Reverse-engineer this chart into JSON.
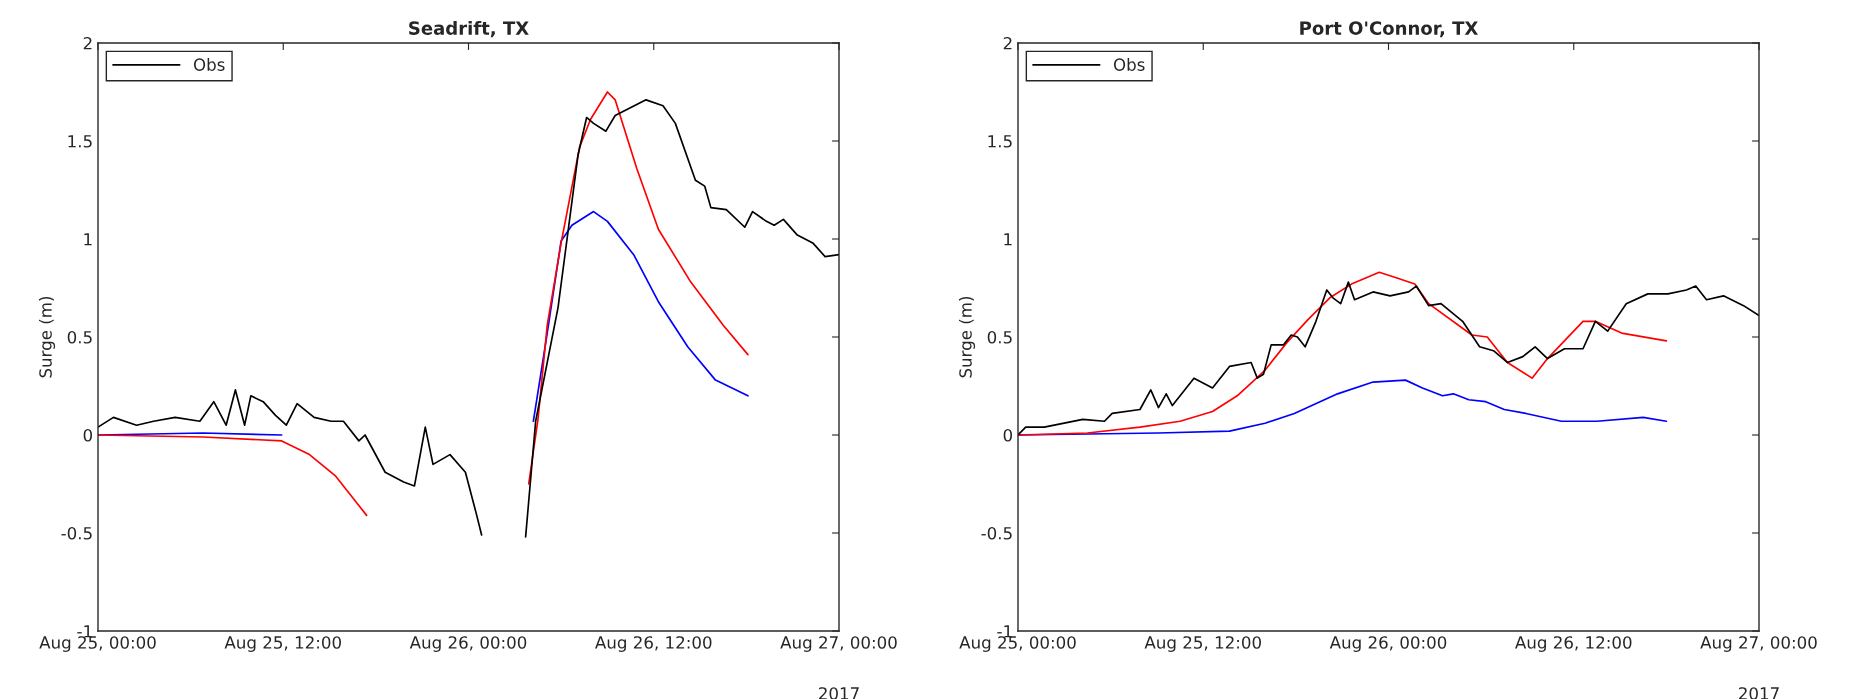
{
  "chart_data": [
    {
      "type": "line",
      "title": "Seadrift, TX",
      "ylabel": "Surge (m)",
      "annotations": [
        "2017"
      ],
      "xlim": [
        "2017-08-25T00:00",
        "2017-08-27T00:00"
      ],
      "xticks": [
        {
          "value": "2017-08-25T00:00",
          "label": "Aug 25, 00:00"
        },
        {
          "value": "2017-08-25T12:00",
          "label": "Aug 25, 12:00"
        },
        {
          "value": "2017-08-26T00:00",
          "label": "Aug 26, 00:00"
        },
        {
          "value": "2017-08-26T12:00",
          "label": "Aug 26, 12:00"
        },
        {
          "value": "2017-08-27T00:00",
          "label": "Aug 27, 00:00"
        }
      ],
      "ylim": [
        -1,
        2
      ],
      "yticks": [
        -1,
        -0.5,
        0,
        0.5,
        1,
        1.5,
        2
      ],
      "grid": false,
      "legend": "top left",
      "line_style": "solid",
      "marker": "none",
      "series": [
        {
          "color": "#0000ff",
          "x": [
            "2017-08-25T00:00",
            "2017-08-25T06:48",
            "2017-08-25T11:54",
            "2017-08-26T00:00",
            "2017-08-26T04:12",
            "2017-08-26T05:06",
            "2017-08-26T06:00",
            "2017-08-26T06:42",
            "2017-08-26T08:06",
            "2017-08-26T09:00",
            "2017-08-26T10:42",
            "2017-08-26T12:18",
            "2017-08-26T14:12",
            "2017-08-26T16:00",
            "2017-08-26T18:06"
          ],
          "values": [
            0.0,
            0.01,
            0.0,
            null,
            0.07,
            0.52,
            0.99,
            1.07,
            1.14,
            1.09,
            0.92,
            0.68,
            0.45,
            0.28,
            0.2
          ]
        },
        {
          "color": "#ff0000",
          "x": [
            "2017-08-25T00:00",
            "2017-08-25T06:48",
            "2017-08-25T11:54",
            "2017-08-25T13:42",
            "2017-08-25T15:24",
            "2017-08-25T16:30",
            "2017-08-25T17:24",
            "2017-08-26T00:00",
            "2017-08-26T03:54",
            "2017-08-26T04:30",
            "2017-08-26T05:06",
            "2017-08-26T06:00",
            "2017-08-26T07:12",
            "2017-08-26T07:54",
            "2017-08-26T09:00",
            "2017-08-26T09:30",
            "2017-08-26T10:54",
            "2017-08-26T12:18",
            "2017-08-26T14:24",
            "2017-08-26T16:30",
            "2017-08-26T18:06"
          ],
          "values": [
            0.0,
            -0.01,
            -0.03,
            -0.1,
            -0.21,
            -0.32,
            -0.41,
            null,
            -0.25,
            0.08,
            0.56,
            0.98,
            1.47,
            1.61,
            1.75,
            1.71,
            1.36,
            1.05,
            0.78,
            0.56,
            0.41
          ]
        },
        {
          "name": "Obs",
          "color": "#000000",
          "x": [
            "2017-08-25T00:00",
            "2017-08-25T01:00",
            "2017-08-25T02:30",
            "2017-08-25T03:36",
            "2017-08-25T05:00",
            "2017-08-25T06:36",
            "2017-08-25T07:30",
            "2017-08-25T08:18",
            "2017-08-25T08:54",
            "2017-08-25T09:30",
            "2017-08-25T09:54",
            "2017-08-25T10:42",
            "2017-08-25T11:30",
            "2017-08-25T12:12",
            "2017-08-25T12:54",
            "2017-08-25T14:00",
            "2017-08-25T15:06",
            "2017-08-25T15:54",
            "2017-08-25T16:54",
            "2017-08-25T17:18",
            "2017-08-25T18:36",
            "2017-08-25T19:48",
            "2017-08-25T20:30",
            "2017-08-25T21:12",
            "2017-08-25T21:42",
            "2017-08-25T22:48",
            "2017-08-25T23:48",
            "2017-08-26T00:30",
            "2017-08-26T00:51",
            "2017-08-26T02:00",
            "2017-08-26T03:42",
            "2017-08-26T04:21",
            "2017-08-26T05:48",
            "2017-08-26T07:06",
            "2017-08-26T07:39",
            "2017-08-26T08:06",
            "2017-08-26T08:54",
            "2017-08-26T09:30",
            "2017-08-26T11:30",
            "2017-08-26T12:36",
            "2017-08-26T13:24",
            "2017-08-26T14:42",
            "2017-08-26T15:18",
            "2017-08-26T15:42",
            "2017-08-26T16:42",
            "2017-08-26T17:54",
            "2017-08-26T18:24",
            "2017-08-26T19:18",
            "2017-08-26T19:48",
            "2017-08-26T20:24",
            "2017-08-26T21:18",
            "2017-08-26T22:18",
            "2017-08-26T23:06",
            "2017-08-27T00:00"
          ],
          "values": [
            0.04,
            0.09,
            0.05,
            0.07,
            0.09,
            0.07,
            0.17,
            0.05,
            0.23,
            0.05,
            0.2,
            0.17,
            0.1,
            0.05,
            0.16,
            0.09,
            0.07,
            0.07,
            -0.03,
            0.0,
            -0.19,
            -0.24,
            -0.26,
            0.04,
            -0.15,
            -0.1,
            -0.19,
            -0.4,
            -0.51,
            null,
            -0.52,
            0.07,
            0.65,
            1.43,
            1.62,
            1.59,
            1.55,
            1.63,
            1.71,
            1.68,
            1.59,
            1.3,
            1.27,
            1.16,
            1.15,
            1.06,
            1.14,
            1.09,
            1.07,
            1.1,
            1.02,
            0.98,
            0.91,
            0.92
          ]
        }
      ]
    },
    {
      "type": "line",
      "title": "Port O'Connor, TX",
      "ylabel": "Surge (m)",
      "annotations": [
        "2017"
      ],
      "xlim": [
        "2017-08-25T00:00",
        "2017-08-27T00:00"
      ],
      "xticks": [
        {
          "value": "2017-08-25T00:00",
          "label": "Aug 25, 00:00"
        },
        {
          "value": "2017-08-25T12:00",
          "label": "Aug 25, 12:00"
        },
        {
          "value": "2017-08-26T00:00",
          "label": "Aug 26, 00:00"
        },
        {
          "value": "2017-08-26T12:00",
          "label": "Aug 26, 12:00"
        },
        {
          "value": "2017-08-27T00:00",
          "label": "Aug 27, 00:00"
        }
      ],
      "ylim": [
        -1,
        2
      ],
      "yticks": [
        -1,
        -0.5,
        0,
        0.5,
        1,
        1.5,
        2
      ],
      "grid": false,
      "legend": "top left",
      "line_style": "solid",
      "marker": "none",
      "series": [
        {
          "color": "#0000ff",
          "x": [
            "2017-08-25T00:00",
            "2017-08-25T09:06",
            "2017-08-25T13:42",
            "2017-08-25T16:00",
            "2017-08-25T17:54",
            "2017-08-25T20:42",
            "2017-08-25T23:00",
            "2017-08-26T01:06",
            "2017-08-26T02:12",
            "2017-08-26T03:30",
            "2017-08-26T04:12",
            "2017-08-26T05:12",
            "2017-08-26T06:18",
            "2017-08-26T07:30",
            "2017-08-26T08:54",
            "2017-08-26T11:12",
            "2017-08-26T13:30",
            "2017-08-26T16:30",
            "2017-08-26T18:00"
          ],
          "values": [
            0.0,
            0.01,
            0.02,
            0.06,
            0.11,
            0.21,
            0.27,
            0.28,
            0.24,
            0.2,
            0.21,
            0.18,
            0.17,
            0.13,
            0.11,
            0.07,
            0.07,
            0.09,
            0.07
          ]
        },
        {
          "color": "#ff0000",
          "x": [
            "2017-08-25T00:00",
            "2017-08-25T04:30",
            "2017-08-25T07:54",
            "2017-08-25T10:30",
            "2017-08-25T12:36",
            "2017-08-25T14:12",
            "2017-08-25T16:00",
            "2017-08-25T17:24",
            "2017-08-25T18:48",
            "2017-08-25T20:12",
            "2017-08-25T21:36",
            "2017-08-25T23:24",
            "2017-08-26T00:36",
            "2017-08-26T01:42",
            "2017-08-26T02:36",
            "2017-08-26T05:24",
            "2017-08-26T06:24",
            "2017-08-26T07:42",
            "2017-08-26T09:18",
            "2017-08-26T10:18",
            "2017-08-26T12:36",
            "2017-08-26T13:24",
            "2017-08-26T15:06",
            "2017-08-26T18:00"
          ],
          "values": [
            0.0,
            0.01,
            0.04,
            0.07,
            0.12,
            0.2,
            0.33,
            0.47,
            0.59,
            0.7,
            0.77,
            0.83,
            0.8,
            0.77,
            0.67,
            0.51,
            0.5,
            0.37,
            0.29,
            0.39,
            0.58,
            0.58,
            0.52,
            0.48
          ]
        },
        {
          "name": "Obs",
          "color": "#000000",
          "x": [
            "2017-08-25T00:00",
            "2017-08-25T00:30",
            "2017-08-25T01:42",
            "2017-08-25T04:12",
            "2017-08-25T05:36",
            "2017-08-25T06:06",
            "2017-08-25T07:54",
            "2017-08-25T08:36",
            "2017-08-25T09:06",
            "2017-08-25T09:36",
            "2017-08-25T10:00",
            "2017-08-25T11:24",
            "2017-08-25T12:36",
            "2017-08-25T13:42",
            "2017-08-25T15:06",
            "2017-08-25T15:30",
            "2017-08-25T15:54",
            "2017-08-25T16:24",
            "2017-08-25T17:12",
            "2017-08-25T17:42",
            "2017-08-25T18:06",
            "2017-08-25T18:36",
            "2017-08-25T19:18",
            "2017-08-25T20:00",
            "2017-08-25T20:24",
            "2017-08-25T20:54",
            "2017-08-25T21:24",
            "2017-08-25T21:48",
            "2017-08-25T23:00",
            "2017-08-26T00:06",
            "2017-08-26T01:18",
            "2017-08-26T01:48",
            "2017-08-26T02:36",
            "2017-08-26T03:24",
            "2017-08-26T04:48",
            "2017-08-26T05:54",
            "2017-08-26T06:48",
            "2017-08-26T07:42",
            "2017-08-26T08:42",
            "2017-08-26T09:30",
            "2017-08-26T10:18",
            "2017-08-26T11:24",
            "2017-08-26T12:36",
            "2017-08-26T13:24",
            "2017-08-26T14:12",
            "2017-08-26T15:24",
            "2017-08-26T16:48",
            "2017-08-26T18:06",
            "2017-08-26T19:18",
            "2017-08-26T19:54",
            "2017-08-26T20:36",
            "2017-08-26T21:42",
            "2017-08-26T23:00",
            "2017-08-27T00:00"
          ],
          "values": [
            0.0,
            0.04,
            0.04,
            0.08,
            0.07,
            0.11,
            0.13,
            0.23,
            0.14,
            0.21,
            0.15,
            0.29,
            0.24,
            0.35,
            0.37,
            0.29,
            0.31,
            0.46,
            0.46,
            0.51,
            0.5,
            0.45,
            0.58,
            0.74,
            0.7,
            0.67,
            0.78,
            0.69,
            0.73,
            0.71,
            0.73,
            0.76,
            0.66,
            0.67,
            0.58,
            0.45,
            0.43,
            0.37,
            0.4,
            0.45,
            0.39,
            0.44,
            0.44,
            0.58,
            0.53,
            0.67,
            0.72,
            0.72,
            0.74,
            0.76,
            0.69,
            0.71,
            0.66,
            0.61
          ]
        }
      ]
    }
  ]
}
